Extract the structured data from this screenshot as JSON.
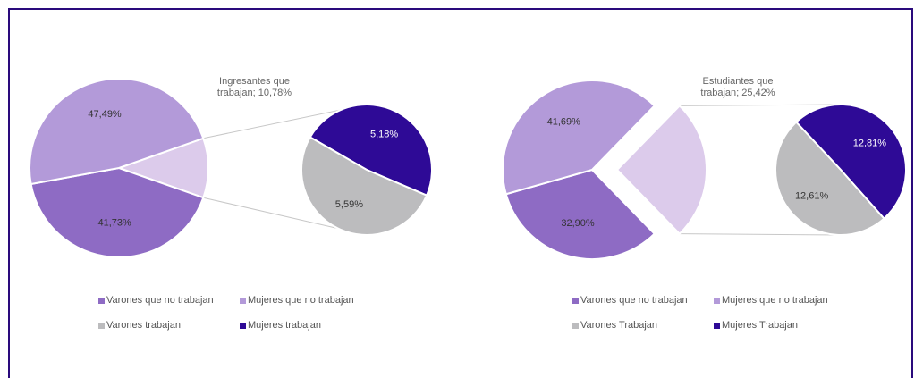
{
  "chart_data": [
    {
      "type": "pie-of-pie",
      "main": {
        "categories": [
          "Varones que no trabajan",
          "Mujeres que no trabajan"
        ],
        "values": [
          41.73,
          47.49
        ],
        "value_labels": [
          "41,73%",
          "47,49%"
        ],
        "colors": [
          "#8e6bc4",
          "#b39ad9"
        ]
      },
      "other": {
        "label": "Ingresantes que trabajan; 10,78%",
        "value": 10.78,
        "color": "#dccbeb"
      },
      "secondary": {
        "categories": [
          "Varones trabajan",
          "Mujeres trabajan"
        ],
        "values": [
          5.59,
          5.18
        ],
        "value_labels": [
          "5,59%",
          "5,18%"
        ],
        "colors": [
          "#bcbcbe",
          "#2e0a96"
        ]
      }
    },
    {
      "type": "pie-of-pie",
      "main": {
        "categories": [
          "Varones que no trabajan",
          "Mujeres que no trabajan"
        ],
        "values": [
          32.9,
          41.69
        ],
        "value_labels": [
          "32,90%",
          "41,69%"
        ],
        "colors": [
          "#8e6bc4",
          "#b39ad9"
        ]
      },
      "other": {
        "label": "Estudiantes que trabajan; 25,42%",
        "value": 25.42,
        "color": "#dccbeb"
      },
      "secondary": {
        "categories": [
          "Varones Trabajan",
          "Mujeres Trabajan"
        ],
        "values": [
          12.61,
          12.81
        ],
        "value_labels": [
          "12,61%",
          "12,81%"
        ],
        "colors": [
          "#bcbcbe",
          "#2e0a96"
        ]
      }
    }
  ]
}
